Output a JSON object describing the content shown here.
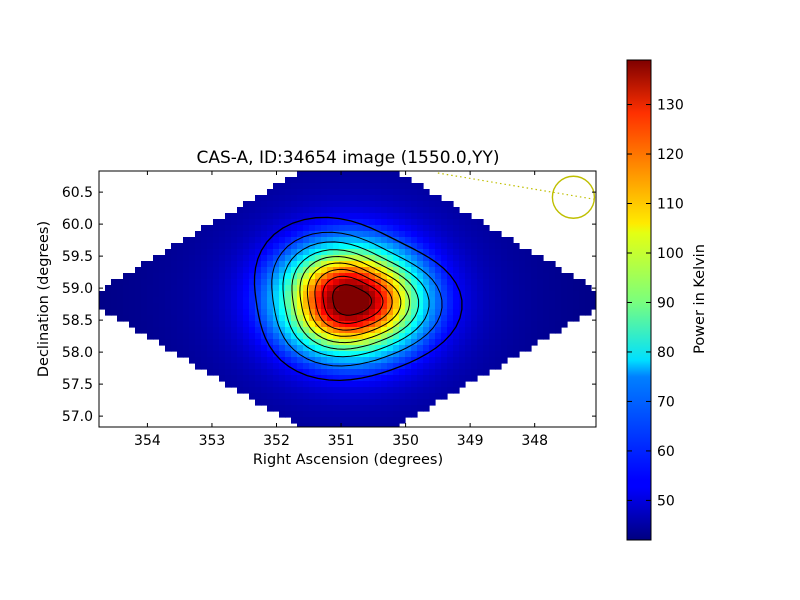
{
  "chart_data": {
    "type": "heatmap",
    "title": "CAS-A, ID:34654 image (1550.0,YY)",
    "xlabel": "Right Ascension (degrees)",
    "ylabel": "Declination (degrees)",
    "xlim": [
      354.75,
      347.05
    ],
    "ylim": [
      56.83,
      60.83
    ],
    "x_ticks": [
      "354",
      "353",
      "352",
      "351",
      "350",
      "349",
      "348"
    ],
    "y_ticks": [
      "57.0",
      "57.5",
      "58.0",
      "58.5",
      "59.0",
      "59.5",
      "60.0",
      "60.5"
    ],
    "colormap": "jet",
    "grid": false,
    "source_peak": {
      "ra": 350.85,
      "dec": 58.81,
      "value": 138
    },
    "background_level": 42,
    "contour_levels": [
      50,
      60,
      70,
      80,
      90,
      100,
      110,
      120,
      130
    ],
    "beam_circle": {
      "ra": 347.4,
      "dec": 60.42,
      "color": "#bfbf00"
    },
    "colorbar": {
      "label": "Power in Kelvin",
      "min": 42,
      "max": 139,
      "ticks": [
        "50",
        "60",
        "70",
        "80",
        "90",
        "100",
        "110",
        "120",
        "130"
      ]
    }
  }
}
